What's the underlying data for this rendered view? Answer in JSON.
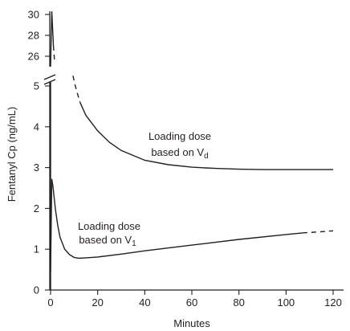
{
  "chart_data": {
    "type": "line",
    "title": "",
    "xlabel": "Minutes",
    "ylabel": "Fentanyl Cp (ng/mL)",
    "xlim": [
      0,
      120
    ],
    "ylim_lower": [
      0,
      5.4
    ],
    "ylim_upper": [
      25.5,
      30.5
    ],
    "y_axis_break": "between 5.4 and 25.5",
    "x_ticks": [
      "0",
      "20",
      "40",
      "60",
      "80",
      "100",
      "120"
    ],
    "y_ticks_lower": [
      "0",
      "1",
      "2",
      "3",
      "4",
      "5"
    ],
    "y_ticks_upper": [
      "26",
      "28",
      "30"
    ],
    "grid": false,
    "legend": "none",
    "series": [
      {
        "annotation_line1": "Loading dose",
        "annotation_line2_prefix": "based on V",
        "annotation_subscript": "d",
        "early_spike_peak": 30.3,
        "dashed_x": [
          9.5,
          10.5,
          11.5,
          12.5
        ],
        "dashed_y": [
          5.25,
          5.0,
          4.8,
          4.6
        ],
        "x": [
          12.5,
          15,
          20,
          25,
          30,
          40,
          50,
          60,
          70,
          80,
          90,
          100,
          110,
          120
        ],
        "y": [
          4.6,
          4.28,
          3.9,
          3.62,
          3.42,
          3.18,
          3.07,
          3.01,
          2.98,
          2.96,
          2.95,
          2.95,
          2.95,
          2.95
        ]
      },
      {
        "annotation_line1": "Loading dose",
        "annotation_line2_prefix": "based on V",
        "annotation_subscript": "1",
        "x": [
          0,
          0.5,
          1,
          2,
          3,
          4,
          6,
          8,
          10,
          12,
          15,
          20,
          30,
          40,
          60,
          80,
          100,
          107
        ],
        "y": [
          0.45,
          2.72,
          2.55,
          2.0,
          1.6,
          1.3,
          1.0,
          0.87,
          0.8,
          0.78,
          0.79,
          0.81,
          0.88,
          0.96,
          1.1,
          1.24,
          1.36,
          1.4
        ],
        "dashed_x": [
          107,
          110,
          115,
          120
        ],
        "dashed_y": [
          1.4,
          1.41,
          1.43,
          1.45
        ]
      }
    ]
  }
}
